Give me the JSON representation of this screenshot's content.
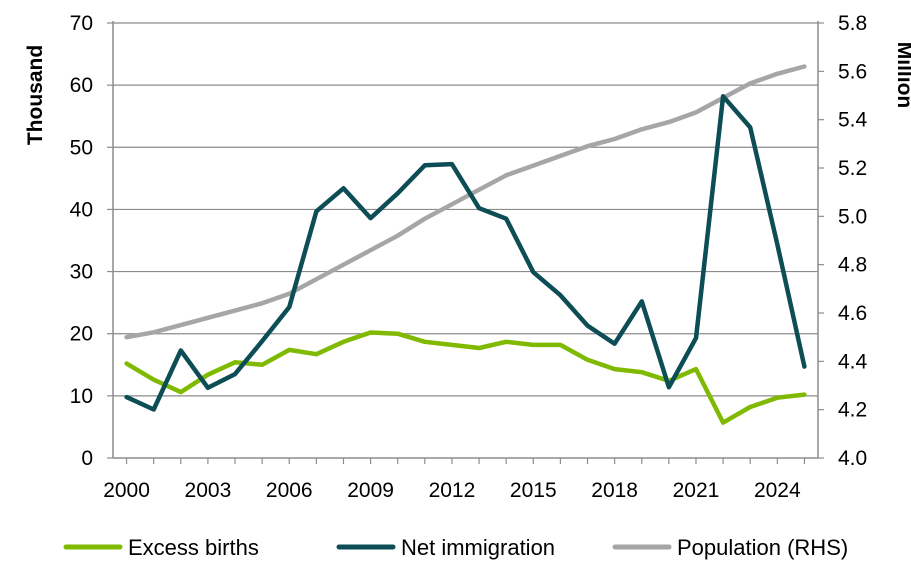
{
  "chart_data": {
    "type": "line",
    "title": "",
    "xlabel": "",
    "ylabel": "Thousand",
    "y2label": "Million",
    "x": [
      2000,
      2001,
      2002,
      2003,
      2004,
      2005,
      2006,
      2007,
      2008,
      2009,
      2010,
      2011,
      2012,
      2013,
      2014,
      2015,
      2016,
      2017,
      2018,
      2019,
      2020,
      2021,
      2022,
      2023,
      2024,
      2025
    ],
    "xticks": [
      "2000",
      "2003",
      "2006",
      "2009",
      "2012",
      "2015",
      "2018",
      "2021",
      "2024"
    ],
    "xlim": [
      1999.5,
      2025.5
    ],
    "ylim": [
      0,
      70
    ],
    "yticks": [
      "0",
      "10",
      "20",
      "30",
      "40",
      "50",
      "60",
      "70"
    ],
    "y2lim": [
      4.0,
      5.8
    ],
    "y2ticks": [
      "4.0",
      "4.2",
      "4.4",
      "4.6",
      "4.8",
      "5.0",
      "5.2",
      "5.4",
      "5.6",
      "5.8"
    ],
    "grid": "horizontal",
    "legend_position": "bottom",
    "series": [
      {
        "name": "Excess births",
        "axis": "left",
        "color": "#7fba00",
        "values": [
          15.2,
          12.6,
          10.6,
          13.4,
          15.4,
          15.0,
          17.4,
          16.7,
          18.7,
          20.2,
          20.0,
          18.7,
          18.2,
          17.7,
          18.7,
          18.2,
          18.2,
          15.8,
          14.3,
          13.8,
          12.4,
          14.3,
          5.7,
          8.2,
          9.7,
          10.2
        ]
      },
      {
        "name": "Net immigration",
        "axis": "left",
        "color": "#0d4d55",
        "values": [
          9.8,
          7.8,
          17.3,
          11.3,
          13.5,
          18.8,
          24.3,
          39.7,
          43.4,
          38.6,
          42.6,
          47.1,
          47.3,
          40.2,
          38.5,
          29.9,
          26.2,
          21.3,
          18.4,
          25.2,
          11.4,
          19.3,
          58.2,
          53.2,
          34.4,
          14.7
        ]
      },
      {
        "name": "Population (RHS)",
        "axis": "right",
        "color": "#a6a6a6",
        "values": [
          4.5,
          4.52,
          4.55,
          4.58,
          4.61,
          4.64,
          4.68,
          4.74,
          4.8,
          4.86,
          4.92,
          4.99,
          5.05,
          5.11,
          5.17,
          5.21,
          5.25,
          5.29,
          5.32,
          5.36,
          5.39,
          5.43,
          5.49,
          5.55,
          5.59,
          5.62
        ]
      }
    ]
  }
}
